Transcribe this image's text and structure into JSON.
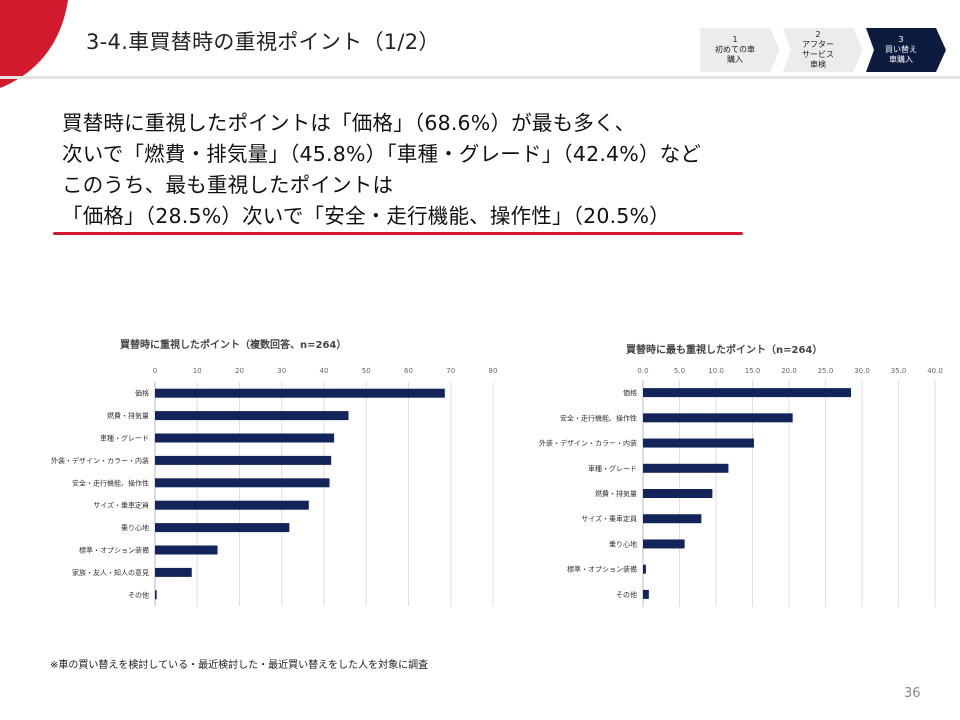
{
  "header": {
    "title": "3-4.車買替時の重視ポイント（1/2）",
    "accent_color": "#d21a2d",
    "steps": [
      {
        "label": "1\n初めての車\n購入",
        "active": false
      },
      {
        "label": "2\nアフター\nサービス\n車検",
        "active": false
      },
      {
        "label": "3\n買い替え\n車購入",
        "active": true
      }
    ],
    "step_active_color": "#0d1b3f",
    "step_inactive_color": "#ececec"
  },
  "lead": {
    "lines": [
      "買替時に重視したポイントは「価格」（68.6%）が最も多く、",
      "次いで「燃費・排気量」（45.8%）「車種・グレード」（42.4%）など",
      "このうち、最も重視したポイントは",
      "「価格」（28.5%）次いで「安全・走行機能、操作性」（20.5%）"
    ]
  },
  "chart_data": [
    {
      "type": "bar",
      "orientation": "horizontal",
      "title": "買替時に重視したポイント（複数回答、n=264）",
      "categories": [
        "価格",
        "燃費・排気量",
        "車種・グレード",
        "外装・デザイン・カラー・内装",
        "安全・走行機能、操作性",
        "サイズ・乗車定員",
        "乗り心地",
        "標準・オプション装備",
        "家族・友人・知人の意見",
        "その他"
      ],
      "values": [
        68.6,
        45.8,
        42.4,
        41.7,
        41.3,
        36.4,
        31.8,
        14.8,
        8.7,
        0.4
      ],
      "xlim": [
        0,
        80
      ],
      "ticks": [
        "0",
        "10",
        "20",
        "30",
        "40",
        "50",
        "60",
        "70",
        "80"
      ],
      "bar_color": "#13245a",
      "grid": true
    },
    {
      "type": "bar",
      "orientation": "horizontal",
      "title": "買替時に最も重視したポイント（n=264）",
      "categories": [
        "価格",
        "安全・走行機能、操作性",
        "外装・デザイン・カラー・内装",
        "車種・グレード",
        "燃費・排気量",
        "サイズ・乗車定員",
        "乗り心地",
        "標準・オプション装備",
        "その他"
      ],
      "values": [
        28.5,
        20.5,
        15.2,
        11.7,
        9.5,
        8.0,
        5.7,
        0.4,
        0.8
      ],
      "xlim": [
        0,
        40
      ],
      "ticks": [
        "0.0",
        "5.0",
        "10.0",
        "15.0",
        "20.0",
        "25.0",
        "30.0",
        "35.0",
        "40.0"
      ],
      "bar_color": "#13245a",
      "grid": true
    }
  ],
  "footnote": "※車の買い替えを検討している・最近検討した・最近買い替えをした人を対象に調査",
  "page_number": "36"
}
